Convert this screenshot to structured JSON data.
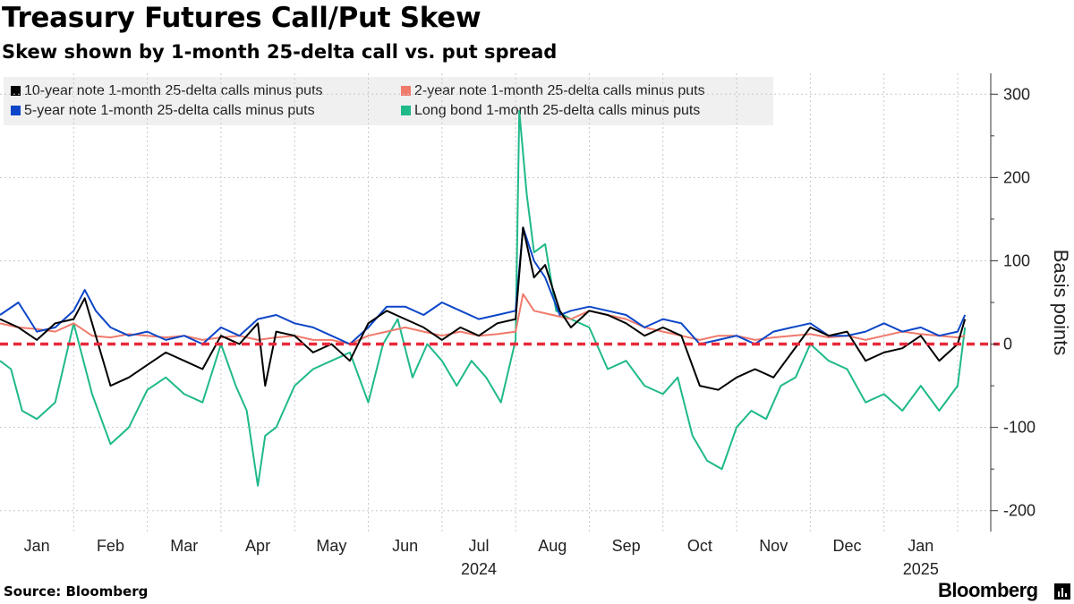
{
  "chart_data": {
    "type": "line",
    "title": "Treasury Futures Call/Put Skew",
    "subtitle": "Skew shown by 1-month 25-delta call vs. put spread",
    "ylabel": "Basis points",
    "ylim": [
      -225,
      325
    ],
    "yticks": [
      300,
      200,
      100,
      0,
      -100,
      -200
    ],
    "ytick_labels": [
      "300",
      "200",
      "100",
      "0",
      "-100",
      "-200"
    ],
    "xlim": [
      0,
      13.45
    ],
    "xticks": [
      {
        "label": "Jan",
        "pos": 0.5
      },
      {
        "label": "Feb",
        "pos": 1.5
      },
      {
        "label": "Mar",
        "pos": 2.5
      },
      {
        "label": "Apr",
        "pos": 3.5
      },
      {
        "label": "May",
        "pos": 4.5
      },
      {
        "label": "Jun",
        "pos": 5.5
      },
      {
        "label": "Jul",
        "pos": 6.5
      },
      {
        "label": "Aug",
        "pos": 7.5
      },
      {
        "label": "Sep",
        "pos": 8.5
      },
      {
        "label": "Oct",
        "pos": 9.5
      },
      {
        "label": "Nov",
        "pos": 10.5
      },
      {
        "label": "Dec",
        "pos": 11.5
      },
      {
        "label": "Jan",
        "pos": 12.5
      }
    ],
    "year_labels": [
      {
        "label": "2024",
        "pos": 6.5
      },
      {
        "label": "2025",
        "pos": 12.5
      }
    ],
    "month_boundaries": [
      1,
      2,
      3,
      4,
      5,
      6,
      7,
      8,
      9,
      10,
      11,
      12,
      13
    ],
    "reference_line": 0,
    "grid": true,
    "legend_position": "top-left",
    "series": [
      {
        "name": "10-year note 1-month 25-delta calls minus puts",
        "color": "#000000",
        "x": [
          0.0,
          0.25,
          0.5,
          0.75,
          1.0,
          1.15,
          1.3,
          1.5,
          1.75,
          2.0,
          2.25,
          2.5,
          2.75,
          3.0,
          3.25,
          3.5,
          3.6,
          3.75,
          4.0,
          4.25,
          4.5,
          4.75,
          5.0,
          5.25,
          5.5,
          5.75,
          6.0,
          6.25,
          6.5,
          6.75,
          7.0,
          7.1,
          7.25,
          7.4,
          7.6,
          7.75,
          8.0,
          8.25,
          8.5,
          8.75,
          9.0,
          9.25,
          9.5,
          9.75,
          10.0,
          10.25,
          10.5,
          10.75,
          11.0,
          11.25,
          11.5,
          11.75,
          12.0,
          12.25,
          12.5,
          12.75,
          13.0,
          13.1
        ],
        "values": [
          30,
          20,
          5,
          25,
          30,
          55,
          10,
          -50,
          -40,
          -25,
          -10,
          -20,
          -30,
          10,
          0,
          25,
          -50,
          15,
          10,
          -10,
          0,
          -20,
          25,
          40,
          30,
          20,
          5,
          20,
          10,
          25,
          30,
          140,
          80,
          95,
          40,
          20,
          40,
          35,
          25,
          10,
          20,
          10,
          -50,
          -55,
          -40,
          -30,
          -40,
          -10,
          20,
          10,
          15,
          -20,
          -10,
          -5,
          10,
          -20,
          0,
          30
        ]
      },
      {
        "name": "2-year note 1-month 25-delta calls minus puts",
        "color": "#f07a6c",
        "x": [
          0.0,
          0.25,
          0.5,
          0.75,
          1.0,
          1.25,
          1.5,
          1.75,
          2.0,
          2.25,
          2.5,
          2.75,
          3.0,
          3.25,
          3.5,
          3.75,
          4.0,
          4.25,
          4.5,
          4.75,
          5.0,
          5.25,
          5.5,
          5.75,
          6.0,
          6.25,
          6.5,
          6.75,
          7.0,
          7.1,
          7.25,
          7.5,
          7.75,
          8.0,
          8.25,
          8.5,
          8.75,
          9.0,
          9.25,
          9.5,
          9.75,
          10.0,
          10.25,
          10.5,
          10.75,
          11.0,
          11.25,
          11.5,
          11.75,
          12.0,
          12.25,
          12.5,
          12.75,
          13.0,
          13.1
        ],
        "values": [
          25,
          20,
          18,
          15,
          25,
          10,
          8,
          12,
          10,
          8,
          10,
          5,
          8,
          10,
          5,
          8,
          10,
          5,
          5,
          0,
          10,
          15,
          20,
          15,
          10,
          15,
          10,
          12,
          15,
          60,
          40,
          35,
          30,
          40,
          35,
          30,
          20,
          15,
          10,
          5,
          10,
          10,
          5,
          8,
          10,
          12,
          8,
          10,
          5,
          10,
          15,
          12,
          10,
          8,
          10
        ]
      },
      {
        "name": "5-year note 1-month 25-delta calls minus puts",
        "color": "#0c46c8",
        "x": [
          0.0,
          0.25,
          0.5,
          0.75,
          1.0,
          1.15,
          1.3,
          1.5,
          1.75,
          2.0,
          2.25,
          2.5,
          2.75,
          3.0,
          3.25,
          3.5,
          3.75,
          4.0,
          4.25,
          4.5,
          4.75,
          5.0,
          5.25,
          5.5,
          5.75,
          6.0,
          6.25,
          6.5,
          6.75,
          7.0,
          7.1,
          7.25,
          7.4,
          7.6,
          7.75,
          8.0,
          8.25,
          8.5,
          8.75,
          9.0,
          9.25,
          9.5,
          9.75,
          10.0,
          10.25,
          10.5,
          10.75,
          11.0,
          11.25,
          11.5,
          11.75,
          12.0,
          12.25,
          12.5,
          12.75,
          13.0,
          13.1
        ],
        "values": [
          35,
          50,
          15,
          20,
          40,
          65,
          40,
          20,
          10,
          15,
          5,
          10,
          0,
          20,
          10,
          30,
          35,
          25,
          20,
          10,
          0,
          20,
          45,
          45,
          35,
          50,
          40,
          30,
          35,
          40,
          140,
          100,
          80,
          35,
          40,
          45,
          40,
          35,
          20,
          30,
          25,
          0,
          5,
          10,
          0,
          15,
          20,
          25,
          10,
          10,
          15,
          25,
          15,
          20,
          10,
          15,
          35
        ]
      },
      {
        "name": "Long bond 1-month 25-delta calls minus puts",
        "color": "#1fb98a",
        "x": [
          0.0,
          0.15,
          0.3,
          0.5,
          0.75,
          1.0,
          1.25,
          1.5,
          1.75,
          2.0,
          2.25,
          2.5,
          2.75,
          3.0,
          3.2,
          3.35,
          3.5,
          3.6,
          3.75,
          4.0,
          4.25,
          4.5,
          4.75,
          5.0,
          5.2,
          5.4,
          5.6,
          5.8,
          6.0,
          6.2,
          6.4,
          6.6,
          6.8,
          7.0,
          7.05,
          7.15,
          7.25,
          7.4,
          7.55,
          7.75,
          8.0,
          8.25,
          8.5,
          8.75,
          9.0,
          9.2,
          9.4,
          9.6,
          9.8,
          10.0,
          10.2,
          10.4,
          10.6,
          10.8,
          11.0,
          11.25,
          11.5,
          11.75,
          12.0,
          12.25,
          12.5,
          12.75,
          13.0,
          13.1
        ],
        "values": [
          -20,
          -30,
          -80,
          -90,
          -70,
          25,
          -60,
          -120,
          -100,
          -55,
          -40,
          -60,
          -70,
          0,
          -50,
          -80,
          -170,
          -110,
          -100,
          -50,
          -30,
          -20,
          -10,
          -70,
          0,
          30,
          -40,
          0,
          -20,
          -50,
          -20,
          -40,
          -70,
          5,
          280,
          180,
          110,
          120,
          40,
          30,
          20,
          -30,
          -20,
          -50,
          -60,
          -40,
          -110,
          -140,
          -150,
          -100,
          -80,
          -90,
          -50,
          -40,
          0,
          -20,
          -30,
          -70,
          -60,
          -80,
          -50,
          -80,
          -50,
          20
        ]
      }
    ]
  }
}
